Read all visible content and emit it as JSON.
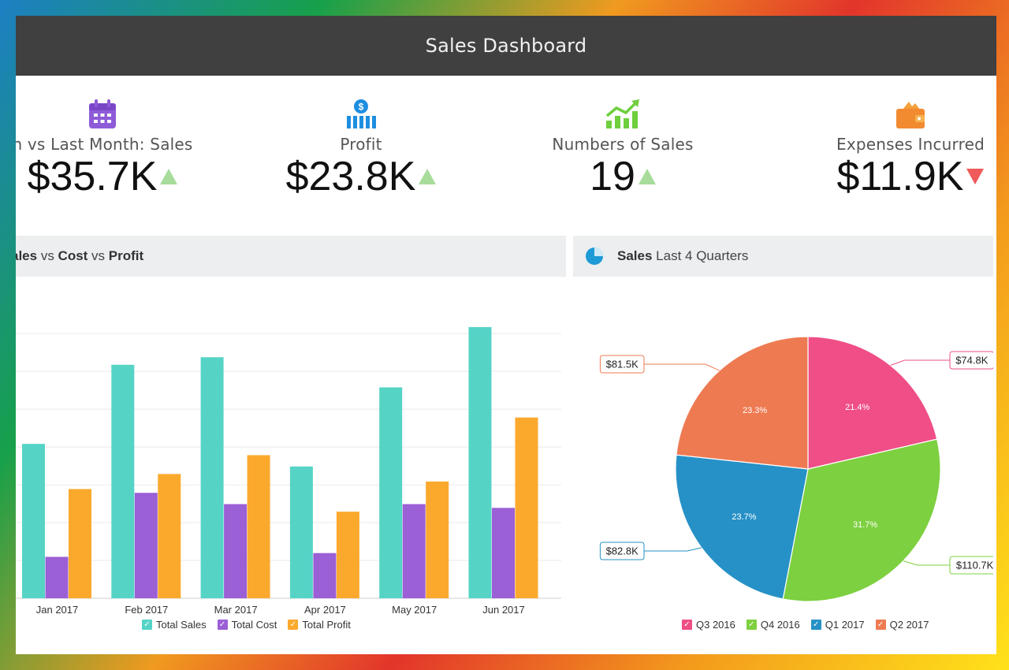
{
  "header": {
    "title": "Sales Dashboard"
  },
  "kpis": [
    {
      "label": "n vs Last Month: Sales",
      "value": "$35.7K",
      "trend": "up",
      "icon": "calendar-icon"
    },
    {
      "label": "Profit",
      "value": "$23.8K",
      "trend": "up",
      "icon": "profit-bars-icon"
    },
    {
      "label": "Numbers of Sales",
      "value": "19",
      "trend": "up",
      "icon": "growth-chart-icon"
    },
    {
      "label": "Expenses Incurred",
      "value": "$11.9K",
      "trend": "down",
      "icon": "wallet-icon"
    }
  ],
  "colors": {
    "sales": "#55d4c6",
    "cost": "#9b5fd6",
    "profit": "#fba92d",
    "q3_2016": "#ef4e87",
    "q4_2016": "#7dd03f",
    "q1_2017": "#2691c6",
    "q2_2017": "#ee7a52",
    "up": "#a8dc9c",
    "down": "#f05a5a"
  },
  "bar_panel": {
    "title_bold_1": "ales",
    "title_sep_1": " vs ",
    "title_bold_2": "Cost",
    "title_sep_2": " vs ",
    "title_bold_3": "Profit"
  },
  "pie_panel": {
    "title_bold": "Sales",
    "title_rest": " Last 4 Quarters",
    "icon": "pie-chart-icon"
  },
  "chart_data": [
    {
      "type": "bar",
      "categories": [
        "Jan 2017",
        "Feb 2017",
        "Mar 2017",
        "Apr 2017",
        "May 2017",
        "Jun 2017"
      ],
      "series": [
        {
          "name": "Total Sales",
          "values": [
            41,
            62,
            64,
            35,
            56,
            72
          ]
        },
        {
          "name": "Total Cost",
          "values": [
            11,
            28,
            25,
            12,
            25,
            24
          ]
        },
        {
          "name": "Total Profit",
          "values": [
            29,
            33,
            38,
            23,
            31,
            48
          ]
        }
      ],
      "ylim": [
        0,
        72
      ],
      "grid": true,
      "legend": "bottom"
    },
    {
      "type": "pie",
      "labels": [
        "Q3 2016",
        "Q4 2016",
        "Q1 2017",
        "Q2 2017"
      ],
      "values": [
        74.8,
        110.7,
        82.8,
        81.5
      ],
      "value_labels": [
        "$74.8K",
        "$110.7K",
        "$82.8K",
        "$81.5K"
      ],
      "percent_labels": [
        "21.4%",
        "31.7%",
        "23.7%",
        "23.3%"
      ],
      "legend": "bottom"
    }
  ]
}
